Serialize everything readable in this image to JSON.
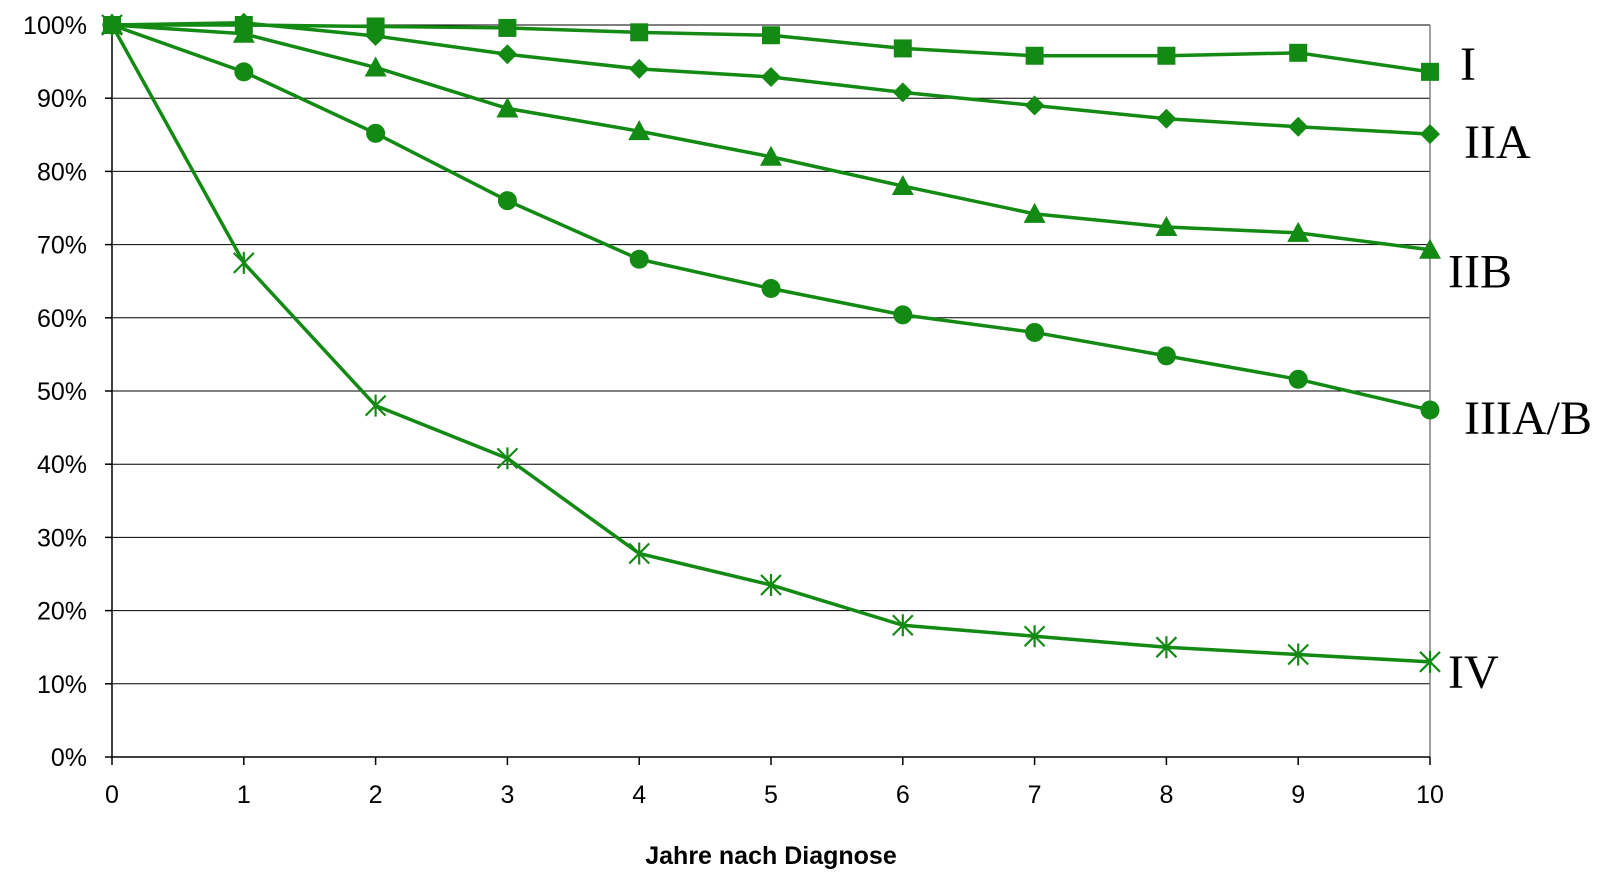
{
  "chart_data": {
    "type": "line",
    "title": "",
    "xlabel": "Jahre nach Diagnose",
    "ylabel": "",
    "x": [
      0,
      1,
      2,
      3,
      4,
      5,
      6,
      7,
      8,
      9,
      10
    ],
    "x_tick_labels": [
      "0",
      "1",
      "2",
      "3",
      "4",
      "5",
      "6",
      "7",
      "8",
      "9",
      "10"
    ],
    "ylim": [
      0,
      100
    ],
    "y_ticks": [
      0,
      10,
      20,
      30,
      40,
      50,
      60,
      70,
      80,
      90,
      100
    ],
    "y_tick_labels": [
      "0%",
      "10%",
      "20%",
      "30%",
      "40%",
      "50%",
      "60%",
      "70%",
      "80%",
      "90%",
      "100%"
    ],
    "grid": "horizontal",
    "legend": "none (series labelled at right end of lines)",
    "line_color": "#138a13",
    "series": [
      {
        "name": "I",
        "marker": "square",
        "values": [
          100,
          100,
          99.8,
          99.6,
          99.0,
          98.6,
          96.8,
          95.8,
          95.8,
          96.2,
          93.6
        ]
      },
      {
        "name": "IIA",
        "marker": "diamond",
        "values": [
          100,
          100.3,
          98.5,
          96.0,
          94.0,
          92.9,
          90.8,
          89.0,
          87.2,
          86.1,
          85.1
        ]
      },
      {
        "name": "IIB",
        "marker": "triangle",
        "values": [
          100,
          98.8,
          94.2,
          88.6,
          85.5,
          82.0,
          78.0,
          74.2,
          72.4,
          71.6,
          69.3
        ]
      },
      {
        "name": "IIIA/B",
        "marker": "circle",
        "values": [
          100,
          93.6,
          85.2,
          76.0,
          68.0,
          64.0,
          60.4,
          58.0,
          54.8,
          51.6,
          47.4
        ]
      },
      {
        "name": "IV",
        "marker": "asterisk",
        "values": [
          100,
          67.5,
          48.0,
          40.8,
          27.8,
          23.5,
          18.0,
          16.5,
          15.0,
          14.0,
          13.0
        ]
      }
    ]
  }
}
